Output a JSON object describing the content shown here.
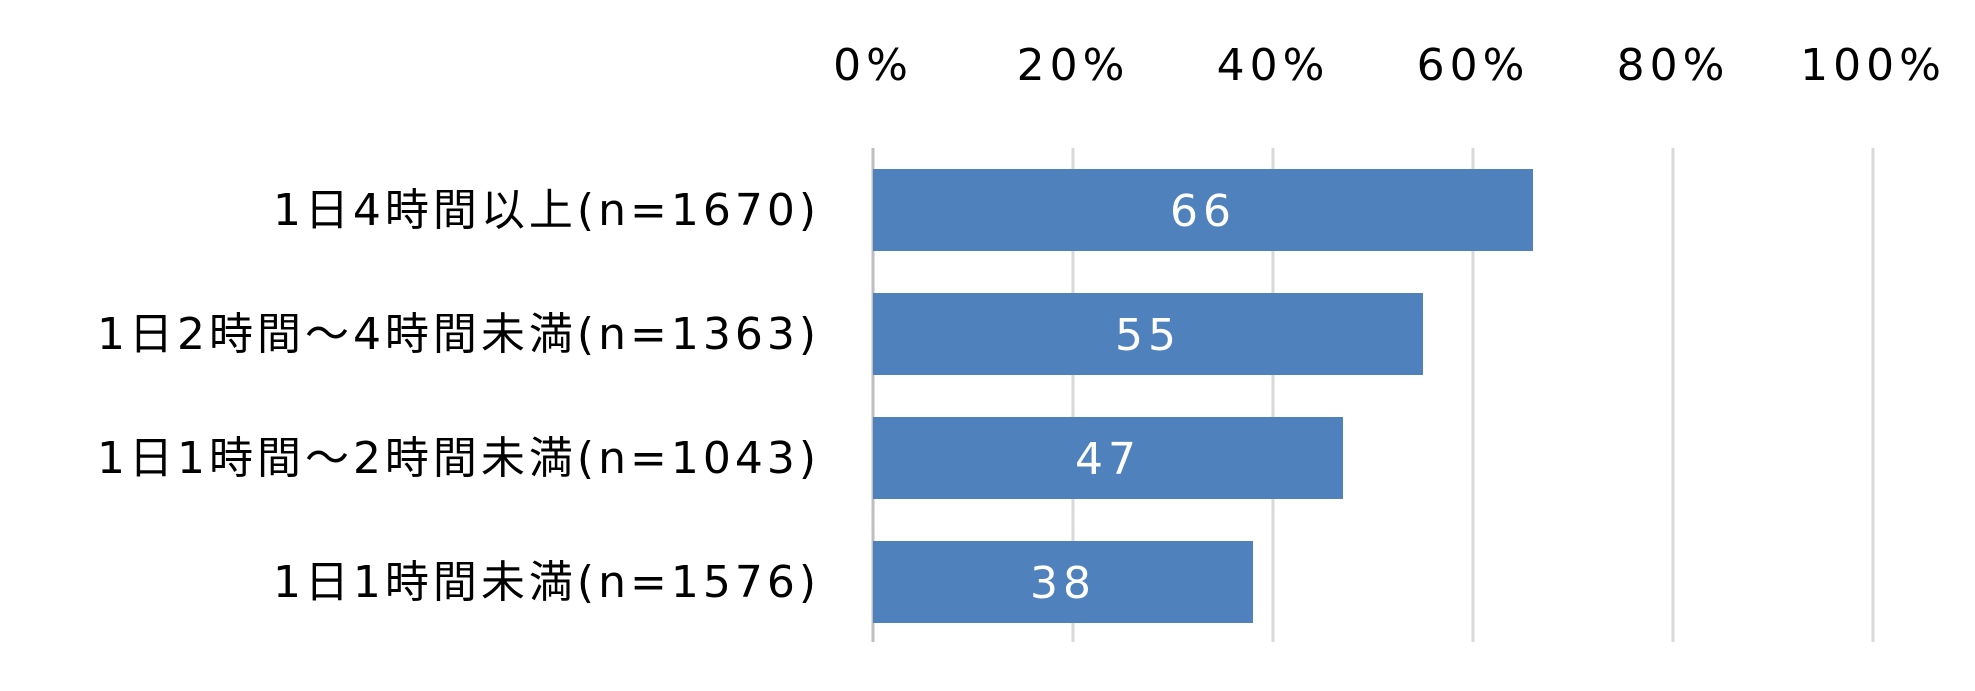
{
  "chart_data": {
    "type": "bar",
    "orientation": "horizontal",
    "categories": [
      "1日4時間以上(n=1670)",
      "1日2時間～4時間未満(n=1363)",
      "1日1時間～2時間未満(n=1043)",
      "1日1時間未満(n=1576)"
    ],
    "values": [
      66,
      55,
      47,
      38
    ],
    "data_labels": [
      "66",
      "55",
      "47",
      "38"
    ],
    "xlim": [
      0,
      100
    ],
    "x_ticks": [
      0,
      20,
      40,
      60,
      80,
      100
    ],
    "x_tick_labels": [
      "0%",
      "20%",
      "40%",
      "60%",
      "80%",
      "100%"
    ],
    "x_axis_position": "top",
    "grid": true,
    "legend": "none",
    "bar_color": "#4f81bd",
    "grid_color": "#d9d9d9",
    "data_label_color": "#ffffff",
    "title": "",
    "xlabel": "",
    "ylabel": ""
  }
}
